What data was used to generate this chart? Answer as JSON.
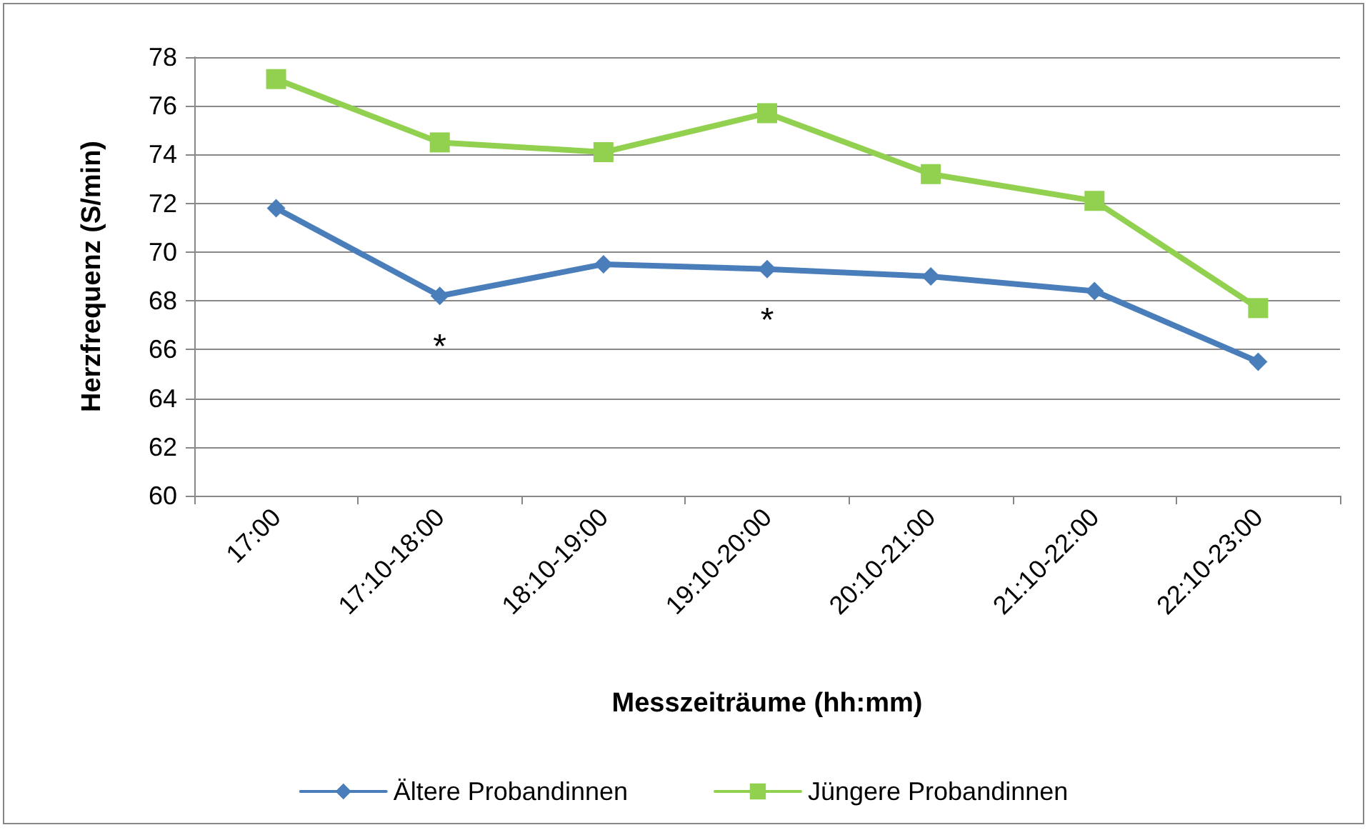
{
  "chart_data": {
    "type": "line",
    "xlabel": "Messzeiträume (hh:mm)",
    "ylabel": "Herzfrequenz (S/min)",
    "categories": [
      "17:00",
      "17:10-18:00",
      "18:10-19:00",
      "19:10-20:00",
      "20:10-21:00",
      "21:10-22:00",
      "22:10-23:00"
    ],
    "series": [
      {
        "name": "Ältere Probandinnen",
        "color": "#4a7ebb",
        "marker": "diamond",
        "values": [
          71.8,
          68.2,
          69.5,
          69.3,
          69.0,
          68.4,
          65.5
        ]
      },
      {
        "name": "Jüngere Probandinnen",
        "color": "#92d050",
        "marker": "square",
        "values": [
          77.1,
          74.5,
          74.1,
          75.7,
          73.2,
          72.1,
          67.7
        ]
      }
    ],
    "annotations": [
      {
        "text": "*",
        "x": "17:10-18:00",
        "y": 68.2
      },
      {
        "text": "*",
        "x": "19:10-20:00",
        "y": 69.3
      }
    ],
    "ylim": [
      60,
      78
    ],
    "yticks": [
      60,
      62,
      64,
      66,
      68,
      70,
      72,
      74,
      76,
      78
    ],
    "grid": "y",
    "legend": "bottom"
  }
}
